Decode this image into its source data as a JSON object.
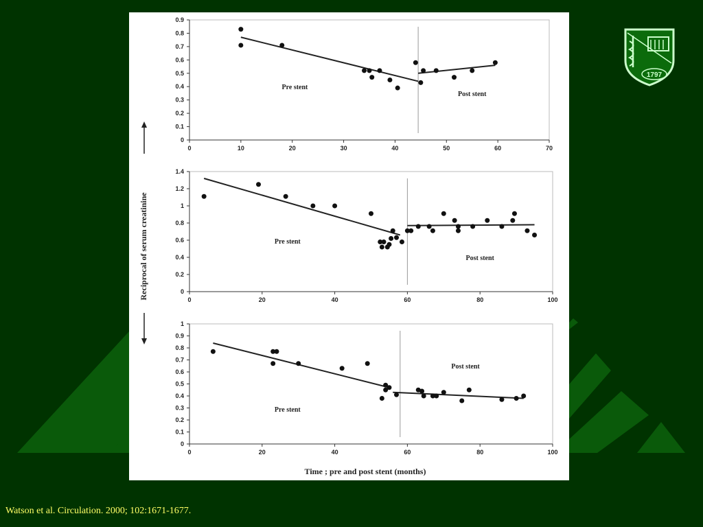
{
  "slide": {
    "citation": "Watson et al. Circulation. 2000; 102:1671-1677.",
    "colors": {
      "background": "#003300",
      "decoration": "#006600",
      "citation": "#ffff66",
      "panel": "#ffffff"
    },
    "logo": {
      "year": "1797",
      "icon": "crest-shield-icon"
    }
  },
  "figure": {
    "ylabel": "Reciprocal of serum creatinine",
    "xlabel": "Time ; pre and post stent (months)",
    "arrows": [
      "up-arrow-icon",
      "down-arrow-icon"
    ]
  },
  "chart_data": [
    {
      "type": "scatter",
      "xlim": [
        0,
        70
      ],
      "ylim": [
        0,
        0.9
      ],
      "xticks": [
        0,
        10,
        20,
        30,
        40,
        50,
        60,
        70
      ],
      "yticks": [
        0,
        0.1,
        0.2,
        0.3,
        0.4,
        0.5,
        0.6,
        0.7,
        0.8,
        0.9
      ],
      "stent_x": 44.5,
      "annotations": [
        {
          "text": "Pre stent",
          "x": 20.5,
          "y": 0.38
        },
        {
          "text": "Post stent",
          "x": 55,
          "y": 0.33
        }
      ],
      "points": [
        [
          10,
          0.83
        ],
        [
          10,
          0.71
        ],
        [
          18,
          0.71
        ],
        [
          34,
          0.52
        ],
        [
          35,
          0.52
        ],
        [
          35.5,
          0.47
        ],
        [
          37,
          0.52
        ],
        [
          39,
          0.45
        ],
        [
          40.5,
          0.39
        ],
        [
          44,
          0.58
        ],
        [
          45,
          0.43
        ],
        [
          45.5,
          0.52
        ],
        [
          48,
          0.52
        ],
        [
          51.5,
          0.47
        ],
        [
          55,
          0.52
        ],
        [
          59.5,
          0.58
        ]
      ],
      "fits": [
        {
          "x": [
            10,
            44.5
          ],
          "y": [
            0.77,
            0.44
          ]
        },
        {
          "x": [
            44.5,
            59.5
          ],
          "y": [
            0.5,
            0.56
          ]
        }
      ]
    },
    {
      "type": "scatter",
      "xlim": [
        0,
        100
      ],
      "ylim": [
        0,
        1.4
      ],
      "xticks": [
        0,
        20,
        40,
        60,
        80,
        100
      ],
      "yticks": [
        0,
        0.2,
        0.4,
        0.6,
        0.8,
        1,
        1.2,
        1.4
      ],
      "stent_x": 60,
      "annotations": [
        {
          "text": "Pre stent",
          "x": 27,
          "y": 0.56
        },
        {
          "text": "Post stent",
          "x": 80,
          "y": 0.37
        }
      ],
      "points": [
        [
          4,
          1.11
        ],
        [
          19,
          1.25
        ],
        [
          26.5,
          1.11
        ],
        [
          34,
          1.0
        ],
        [
          40,
          1.0
        ],
        [
          50,
          0.91
        ],
        [
          52.5,
          0.58
        ],
        [
          53,
          0.52
        ],
        [
          53.5,
          0.58
        ],
        [
          54.5,
          0.52
        ],
        [
          55,
          0.55
        ],
        [
          55.5,
          0.62
        ],
        [
          56,
          0.71
        ],
        [
          57,
          0.63
        ],
        [
          58.5,
          0.58
        ],
        [
          60,
          0.71
        ],
        [
          61,
          0.71
        ],
        [
          63,
          0.76
        ],
        [
          66,
          0.76
        ],
        [
          67,
          0.71
        ],
        [
          70,
          0.91
        ],
        [
          73,
          0.83
        ],
        [
          74,
          0.76
        ],
        [
          74,
          0.71
        ],
        [
          78,
          0.76
        ],
        [
          82,
          0.83
        ],
        [
          86,
          0.76
        ],
        [
          89,
          0.83
        ],
        [
          89.5,
          0.91
        ],
        [
          93,
          0.71
        ],
        [
          95,
          0.66
        ]
      ],
      "fits": [
        {
          "x": [
            4,
            58
          ],
          "y": [
            1.32,
            0.66
          ]
        },
        {
          "x": [
            60,
            95
          ],
          "y": [
            0.77,
            0.78
          ]
        }
      ]
    },
    {
      "type": "scatter",
      "xlim": [
        0,
        100
      ],
      "ylim": [
        0,
        1
      ],
      "xticks": [
        0,
        20,
        40,
        60,
        80,
        100
      ],
      "yticks": [
        0,
        0.1,
        0.2,
        0.3,
        0.4,
        0.5,
        0.6,
        0.7,
        0.8,
        0.9,
        1
      ],
      "stent_x": 58,
      "annotations": [
        {
          "text": "Pre stent",
          "x": 27,
          "y": 0.27
        },
        {
          "text": "Post stent",
          "x": 76,
          "y": 0.63
        }
      ],
      "points": [
        [
          6.5,
          0.77
        ],
        [
          23,
          0.77
        ],
        [
          24,
          0.77
        ],
        [
          23,
          0.67
        ],
        [
          30,
          0.67
        ],
        [
          42,
          0.63
        ],
        [
          49,
          0.67
        ],
        [
          53,
          0.38
        ],
        [
          54,
          0.49
        ],
        [
          54,
          0.45
        ],
        [
          55,
          0.47
        ],
        [
          57,
          0.41
        ],
        [
          63,
          0.45
        ],
        [
          64,
          0.44
        ],
        [
          64.5,
          0.4
        ],
        [
          67,
          0.4
        ],
        [
          68,
          0.4
        ],
        [
          70,
          0.43
        ],
        [
          75,
          0.36
        ],
        [
          77,
          0.45
        ],
        [
          86,
          0.37
        ],
        [
          90,
          0.38
        ],
        [
          92,
          0.4
        ]
      ],
      "fits": [
        {
          "x": [
            6.5,
            55
          ],
          "y": [
            0.84,
            0.47
          ]
        },
        {
          "x": [
            56,
            92
          ],
          "y": [
            0.43,
            0.38
          ]
        }
      ]
    }
  ]
}
